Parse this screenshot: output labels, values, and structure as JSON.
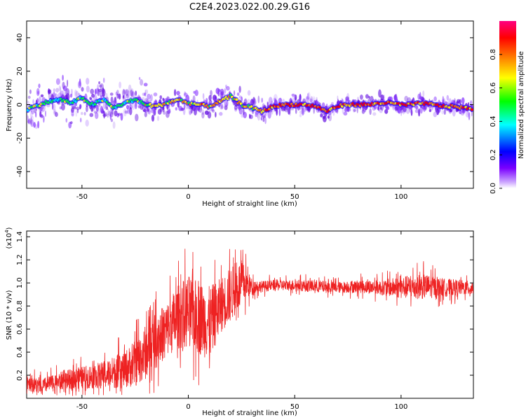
{
  "title": "C2E4.2023.022.00.29.G16",
  "chart_data": [
    {
      "type": "heatmap",
      "xlabel": "Height of straight line (km)",
      "ylabel": "Frequency (Hz)",
      "xlim": [
        -76,
        134
      ],
      "ylim": [
        -50,
        50
      ],
      "xticks": [
        -50,
        0,
        50,
        100
      ],
      "xtick_labels": [
        "-50",
        "0",
        "50",
        "100"
      ],
      "yticks": [
        -40,
        -20,
        0,
        20,
        40
      ],
      "ytick_labels": [
        "-40",
        "-20",
        "0",
        "20",
        "40"
      ],
      "colorbar": {
        "label": "Normalized spectral amplitude",
        "range": [
          0,
          1
        ],
        "ticks": [
          0.0,
          0.2,
          0.4,
          0.6,
          0.8
        ],
        "tick_labels": [
          "0.0",
          "0.2",
          "0.4",
          "0.6",
          "0.8"
        ],
        "colors": [
          "#ffffff",
          "#6a00ff",
          "#0000ff",
          "#00ffff",
          "#00ff00",
          "#ffff00",
          "#ff8000",
          "#ff0000",
          "#ff0080"
        ]
      },
      "ridge": {
        "x": [
          -76,
          -70,
          -65,
          -60,
          -55,
          -50,
          -45,
          -40,
          -35,
          -30,
          -25,
          -20,
          -15,
          -10,
          -5,
          0,
          5,
          10,
          15,
          20,
          25,
          30,
          35,
          40,
          45,
          50,
          55,
          60,
          65,
          70,
          75,
          80,
          85,
          90,
          95,
          100,
          105,
          110,
          115,
          120,
          125,
          130,
          134
        ],
        "y": [
          -3,
          0,
          2,
          3,
          1,
          4,
          0,
          3,
          -2,
          1,
          3,
          0,
          -1,
          1,
          3,
          1,
          0,
          -1,
          2,
          5,
          0,
          -2,
          -4,
          -1,
          0,
          0,
          0,
          -1,
          -4,
          -1,
          0,
          0,
          0,
          1,
          1,
          0,
          0,
          1,
          0,
          -1,
          -1,
          -2,
          -3
        ]
      }
    },
    {
      "type": "line",
      "xlabel": "Height of straight line (km)",
      "ylabel": "SNR (10 * v/v)",
      "multiplier": "(x10",
      "multiplier_exp": "4",
      "xlim": [
        -76,
        134
      ],
      "ylim": [
        0.0,
        1.45
      ],
      "xticks": [
        -50,
        0,
        50,
        100
      ],
      "xtick_labels": [
        "-50",
        "0",
        "50",
        "100"
      ],
      "yticks": [
        0.2,
        0.4,
        0.6,
        0.8,
        1.0,
        1.2,
        1.4
      ],
      "ytick_labels": [
        "0.2",
        "0.4",
        "0.6",
        "0.8",
        "1.0",
        "1.2",
        "1.4"
      ],
      "series": [
        {
          "color": "#ee2222",
          "envelope_x": [
            -76,
            -70,
            -60,
            -50,
            -40,
            -30,
            -25,
            -20,
            -15,
            -10,
            -5,
            0,
            5,
            10,
            15,
            20,
            25,
            30,
            35,
            40,
            50,
            60,
            70,
            80,
            90,
            100,
            110,
            120,
            130,
            134
          ],
          "envelope_y": [
            0.15,
            0.1,
            0.15,
            0.18,
            0.2,
            0.25,
            0.3,
            0.4,
            0.5,
            0.6,
            0.7,
            0.75,
            0.7,
            0.65,
            0.8,
            0.9,
            1.0,
            0.97,
            0.97,
            0.98,
            0.98,
            0.97,
            0.96,
            0.97,
            0.96,
            0.96,
            0.97,
            0.96,
            0.96,
            0.95
          ],
          "noise": [
            0.1,
            0.08,
            0.1,
            0.12,
            0.15,
            0.2,
            0.25,
            0.3,
            0.3,
            0.3,
            0.35,
            0.4,
            0.4,
            0.4,
            0.3,
            0.3,
            0.25,
            0.08,
            0.06,
            0.06,
            0.06,
            0.07,
            0.06,
            0.07,
            0.08,
            0.12,
            0.14,
            0.1,
            0.08,
            0.08
          ]
        }
      ]
    }
  ]
}
